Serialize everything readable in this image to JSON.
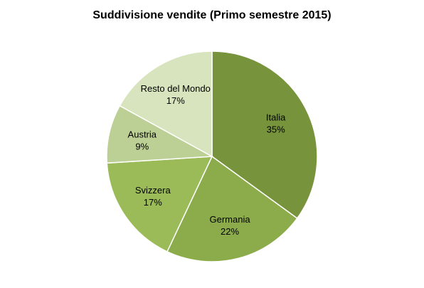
{
  "chart_data": {
    "type": "pie",
    "title": "Suddivisione vendite (Primo semestre 2015)",
    "categories": [
      "Italia",
      "Germania",
      "Svizzera",
      "Austria",
      "Resto del Mondo"
    ],
    "values": [
      35,
      22,
      17,
      9,
      17
    ],
    "value_labels": [
      "35%",
      "22%",
      "17%",
      "9%",
      "17%"
    ],
    "colors": [
      "#77933c",
      "#8cac4c",
      "#9bbb59",
      "#bccf94",
      "#d7e4bd"
    ]
  }
}
